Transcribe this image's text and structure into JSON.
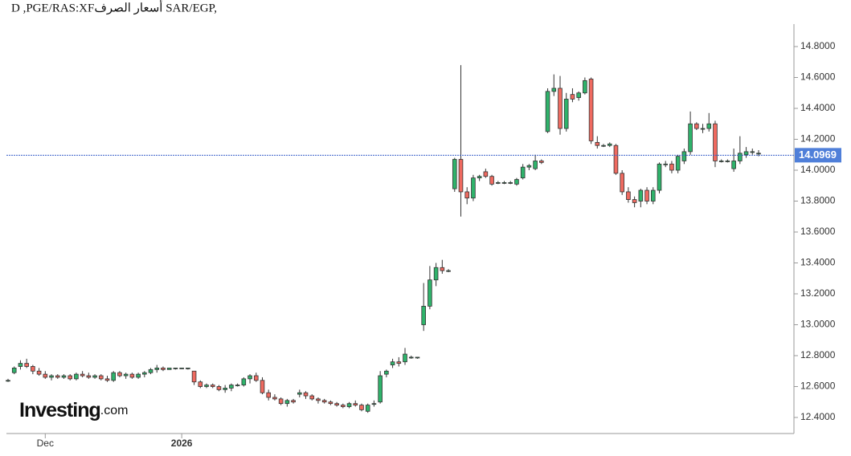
{
  "chart_data": {
    "type": "candlestick",
    "title": "D ,PGE/RAS:XFأسعار الصرف SAR/EGP,",
    "brand": "Investing",
    "brand_suffix": ".com",
    "up_color": "#2fb36b",
    "down_color": "#ef6a60",
    "ylim": [
      12.3065,
      14.9455
    ],
    "yticks": [
      {
        "value": 12.4,
        "label": "12.4000"
      },
      {
        "value": 12.6,
        "label": "12.6000"
      },
      {
        "value": 12.8,
        "label": "12.8000"
      },
      {
        "value": 13.0,
        "label": "13.0000"
      },
      {
        "value": 13.2,
        "label": "13.2000"
      },
      {
        "value": 13.4,
        "label": "13.4000"
      },
      {
        "value": 13.6,
        "label": "13.6000"
      },
      {
        "value": 13.8,
        "label": "13.8000"
      },
      {
        "value": 14.0,
        "label": "14.0000"
      },
      {
        "value": 14.2,
        "label": "14.2000"
      },
      {
        "value": 14.4,
        "label": "14.4000"
      },
      {
        "value": 14.6,
        "label": "14.6000"
      },
      {
        "value": 14.8,
        "label": "14.8000"
      }
    ],
    "current_price": {
      "value": 14.0969,
      "label": "14.0969"
    },
    "categories": [
      null,
      null,
      null,
      null,
      null,
      null,
      "Dec",
      null,
      null,
      null,
      null,
      null,
      null,
      null,
      null,
      null,
      null,
      null,
      null,
      null,
      null,
      null,
      null,
      null,
      null,
      null,
      null,
      null,
      "2026",
      null,
      null,
      null,
      null,
      null,
      null,
      null,
      null,
      null,
      null,
      null,
      null,
      null,
      null,
      null,
      null,
      null,
      null,
      null,
      null,
      null,
      null,
      null,
      null,
      null,
      null,
      null,
      null,
      null,
      null,
      null,
      null,
      null,
      null,
      null,
      null,
      null,
      null,
      null,
      null,
      null,
      null,
      null,
      null,
      null,
      null,
      null,
      null,
      null,
      null,
      null,
      null,
      null,
      null,
      null,
      null,
      null,
      null,
      null,
      null,
      null,
      null,
      null,
      null,
      null,
      null,
      null,
      null,
      null,
      null,
      null,
      null,
      null,
      null,
      null,
      null,
      null,
      null,
      null,
      null,
      null,
      null,
      null,
      null,
      null,
      null,
      null,
      null,
      null,
      null,
      null,
      null,
      null,
      null
    ],
    "ohlc": [
      [
        12.64,
        12.65,
        12.63,
        12.64
      ],
      [
        12.69,
        12.73,
        12.68,
        12.72
      ],
      [
        12.73,
        12.77,
        12.71,
        12.75
      ],
      [
        12.75,
        12.78,
        12.72,
        12.73
      ],
      [
        12.73,
        12.74,
        12.68,
        12.7
      ],
      [
        12.7,
        12.72,
        12.67,
        12.68
      ],
      [
        12.68,
        12.7,
        12.65,
        12.66
      ],
      [
        12.66,
        12.68,
        12.64,
        12.67
      ],
      [
        12.67,
        12.68,
        12.65,
        12.66
      ],
      [
        12.66,
        12.68,
        12.65,
        12.67
      ],
      [
        12.67,
        12.68,
        12.64,
        12.65
      ],
      [
        12.65,
        12.69,
        12.64,
        12.68
      ],
      [
        12.68,
        12.7,
        12.66,
        12.67
      ],
      [
        12.67,
        12.69,
        12.65,
        12.66
      ],
      [
        12.66,
        12.68,
        12.65,
        12.67
      ],
      [
        12.67,
        12.68,
        12.64,
        12.65
      ],
      [
        12.65,
        12.67,
        12.63,
        12.64
      ],
      [
        12.64,
        12.7,
        12.63,
        12.69
      ],
      [
        12.69,
        12.7,
        12.66,
        12.67
      ],
      [
        12.67,
        12.69,
        12.65,
        12.68
      ],
      [
        12.68,
        12.69,
        12.65,
        12.66
      ],
      [
        12.66,
        12.69,
        12.65,
        12.68
      ],
      [
        12.68,
        12.7,
        12.66,
        12.69
      ],
      [
        12.69,
        12.72,
        12.68,
        12.71
      ],
      [
        12.71,
        12.74,
        12.69,
        12.72
      ],
      [
        12.72,
        12.73,
        12.7,
        12.71
      ],
      [
        12.71,
        12.72,
        12.71,
        12.72
      ],
      [
        12.72,
        12.72,
        12.71,
        12.72
      ],
      [
        12.72,
        12.72,
        12.72,
        12.72
      ],
      [
        12.72,
        12.72,
        12.71,
        12.72
      ],
      [
        12.7,
        12.7,
        12.61,
        12.63
      ],
      [
        12.63,
        12.64,
        12.59,
        12.6
      ],
      [
        12.6,
        12.62,
        12.59,
        12.61
      ],
      [
        12.61,
        12.62,
        12.59,
        12.6
      ],
      [
        12.6,
        12.61,
        12.57,
        12.58
      ],
      [
        12.58,
        12.61,
        12.56,
        12.59
      ],
      [
        12.59,
        12.62,
        12.57,
        12.61
      ],
      [
        12.61,
        12.62,
        12.6,
        12.61
      ],
      [
        12.61,
        12.66,
        12.6,
        12.65
      ],
      [
        12.65,
        12.68,
        12.62,
        12.67
      ],
      [
        12.67,
        12.69,
        12.63,
        12.64
      ],
      [
        12.64,
        12.66,
        12.55,
        12.56
      ],
      [
        12.56,
        12.58,
        12.51,
        12.53
      ],
      [
        12.53,
        12.55,
        12.51,
        12.52
      ],
      [
        12.52,
        12.53,
        12.48,
        12.49
      ],
      [
        12.49,
        12.52,
        12.47,
        12.51
      ],
      [
        12.51,
        12.52,
        12.49,
        12.5
      ],
      [
        12.55,
        12.58,
        12.53,
        12.56
      ],
      [
        12.56,
        12.57,
        12.52,
        12.54
      ],
      [
        12.54,
        12.55,
        12.51,
        12.52
      ],
      [
        12.52,
        12.53,
        12.49,
        12.51
      ],
      [
        12.51,
        12.52,
        12.49,
        12.5
      ],
      [
        12.5,
        12.51,
        12.48,
        12.49
      ],
      [
        12.49,
        12.5,
        12.47,
        12.48
      ],
      [
        12.48,
        12.49,
        12.46,
        12.47
      ],
      [
        12.47,
        12.5,
        12.46,
        12.49
      ],
      [
        12.49,
        12.51,
        12.47,
        12.48
      ],
      [
        12.48,
        12.49,
        12.44,
        12.45
      ],
      [
        12.44,
        12.49,
        12.43,
        12.48
      ],
      [
        12.49,
        12.51,
        12.47,
        12.49
      ],
      [
        12.5,
        12.7,
        12.49,
        12.67
      ],
      [
        12.68,
        12.71,
        12.66,
        12.7
      ],
      [
        12.74,
        12.78,
        12.72,
        12.76
      ],
      [
        12.76,
        12.79,
        12.73,
        12.75
      ],
      [
        12.76,
        12.85,
        12.74,
        12.81
      ],
      [
        12.79,
        12.8,
        12.78,
        12.79
      ],
      [
        12.79,
        12.79,
        12.78,
        12.79
      ],
      [
        13.0,
        13.27,
        12.96,
        13.12
      ],
      [
        13.12,
        13.38,
        13.1,
        13.29
      ],
      [
        13.29,
        13.4,
        13.25,
        13.37
      ],
      [
        13.37,
        13.42,
        13.33,
        13.35
      ],
      [
        13.35,
        13.36,
        13.34,
        13.35
      ],
      [
        13.88,
        14.08,
        13.86,
        14.07
      ],
      [
        14.07,
        14.68,
        13.7,
        13.86
      ],
      [
        13.86,
        13.89,
        13.78,
        13.82
      ],
      [
        13.82,
        13.97,
        13.8,
        13.95
      ],
      [
        13.95,
        13.97,
        13.93,
        13.96
      ],
      [
        13.99,
        14.01,
        13.95,
        13.96
      ],
      [
        13.96,
        13.97,
        13.9,
        13.91
      ],
      [
        13.92,
        13.93,
        13.91,
        13.92
      ],
      [
        13.92,
        13.93,
        13.91,
        13.92
      ],
      [
        13.92,
        13.93,
        13.91,
        13.92
      ],
      [
        13.91,
        13.95,
        13.9,
        13.94
      ],
      [
        13.95,
        14.04,
        13.94,
        14.02
      ],
      [
        14.02,
        14.04,
        14.0,
        14.03
      ],
      [
        14.01,
        14.1,
        14.0,
        14.06
      ],
      [
        14.06,
        14.07,
        14.04,
        14.05
      ],
      [
        14.25,
        14.53,
        14.24,
        14.51
      ],
      [
        14.51,
        14.62,
        14.48,
        14.53
      ],
      [
        14.53,
        14.61,
        14.23,
        14.27
      ],
      [
        14.27,
        14.5,
        14.25,
        14.46
      ],
      [
        14.49,
        14.53,
        14.44,
        14.46
      ],
      [
        14.47,
        14.51,
        14.45,
        14.5
      ],
      [
        14.5,
        14.6,
        14.49,
        14.58
      ],
      [
        14.59,
        14.6,
        14.17,
        14.19
      ],
      [
        14.18,
        14.22,
        14.14,
        14.16
      ],
      [
        14.16,
        14.17,
        14.15,
        14.16
      ],
      [
        14.16,
        14.18,
        14.15,
        14.17
      ],
      [
        14.16,
        14.17,
        13.97,
        13.98
      ],
      [
        13.98,
        14.0,
        13.84,
        13.86
      ],
      [
        13.86,
        13.89,
        13.79,
        13.81
      ],
      [
        13.81,
        13.83,
        13.76,
        13.79
      ],
      [
        13.8,
        13.88,
        13.76,
        13.87
      ],
      [
        13.87,
        13.89,
        13.78,
        13.8
      ],
      [
        13.8,
        13.89,
        13.78,
        13.87
      ],
      [
        13.87,
        14.05,
        13.85,
        14.04
      ],
      [
        14.04,
        14.06,
        14.02,
        14.04
      ],
      [
        14.04,
        14.06,
        13.98,
        14.0
      ],
      [
        14.0,
        14.1,
        13.98,
        14.09
      ],
      [
        14.06,
        14.14,
        14.04,
        14.12
      ],
      [
        14.12,
        14.38,
        14.1,
        14.3
      ],
      [
        14.3,
        14.31,
        14.26,
        14.27
      ],
      [
        14.27,
        14.3,
        14.24,
        14.27
      ],
      [
        14.27,
        14.37,
        14.25,
        14.3
      ],
      [
        14.3,
        14.32,
        14.02,
        14.06
      ],
      [
        14.06,
        14.07,
        14.05,
        14.06
      ],
      [
        14.06,
        14.07,
        14.05,
        14.06
      ],
      [
        14.01,
        14.14,
        13.99,
        14.06
      ],
      [
        14.06,
        14.22,
        14.04,
        14.11
      ],
      [
        14.1,
        14.15,
        14.08,
        14.12
      ],
      [
        14.12,
        14.14,
        14.1,
        14.12
      ],
      [
        14.11,
        14.13,
        14.09,
        14.11
      ]
    ]
  }
}
